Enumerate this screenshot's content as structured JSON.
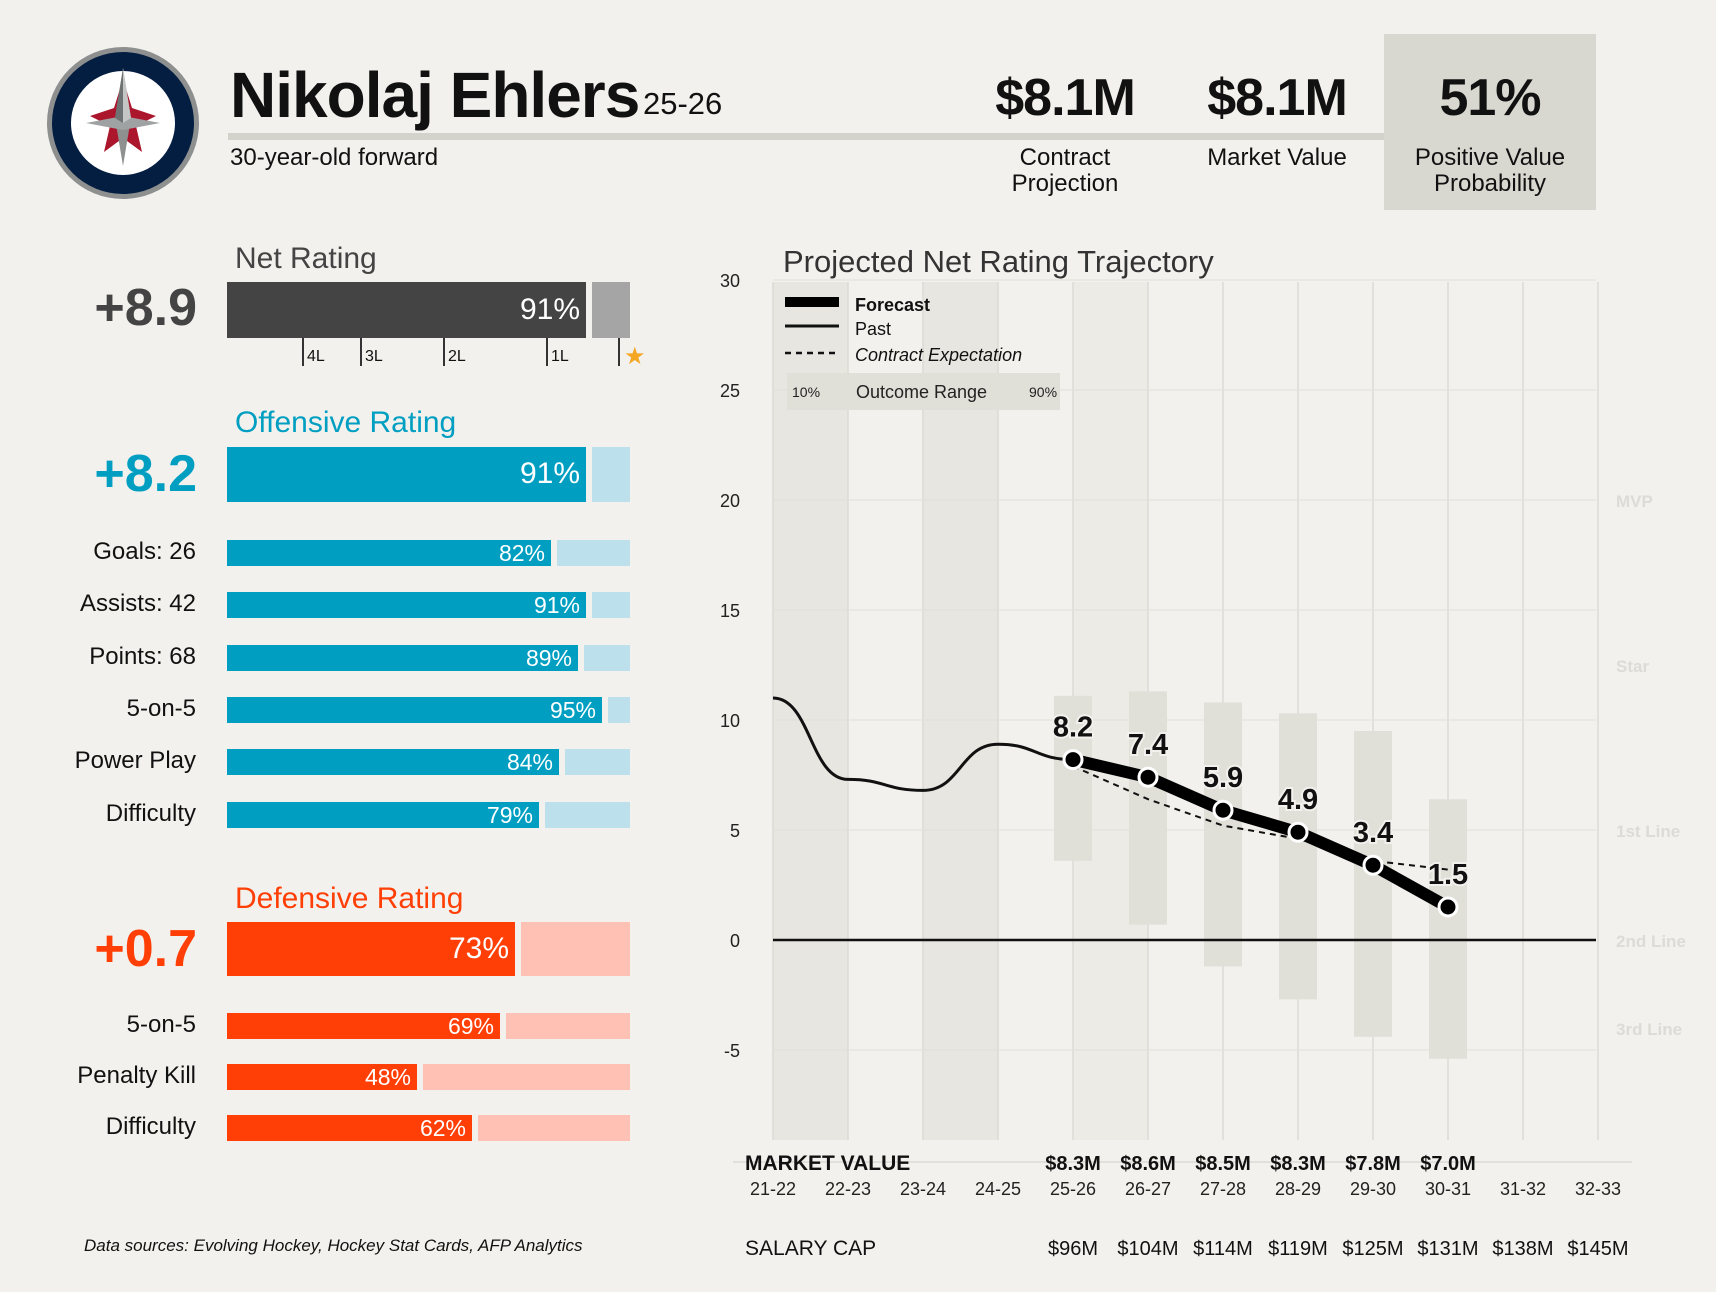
{
  "player": {
    "name": "Nikolaj Ehlers",
    "season": "25-26",
    "descriptor": "30-year-old forward",
    "team_colors": {
      "navy": "#041e42",
      "red": "#ac162c",
      "silver": "#8e9090"
    }
  },
  "header_stats": [
    {
      "value": "$8.1M",
      "label": "Contract Projection"
    },
    {
      "value": "$8.1M",
      "label": "Market Value"
    },
    {
      "value": "51%",
      "label": "Positive Value Probability"
    }
  ],
  "net": {
    "title": "Net Rating",
    "value": "+8.9",
    "pct_label": "91%",
    "pct": 0.91,
    "color": "#444444",
    "track": "#a5a5a5",
    "tiers": [
      "4L",
      "3L",
      "2L",
      "1L"
    ],
    "star": "★",
    "star_color": "#f5a623"
  },
  "offense": {
    "title": "Offensive Rating",
    "value": "+8.2",
    "pct_label": "91%",
    "pct": 0.91,
    "color": "#009fc2",
    "track": "#bde1ec",
    "rows": [
      {
        "label": "Goals: 26",
        "pct_label": "82%",
        "pct": 0.82
      },
      {
        "label": "Assists: 42",
        "pct_label": "91%",
        "pct": 0.91
      },
      {
        "label": "Points: 68",
        "pct_label": "89%",
        "pct": 0.89
      },
      {
        "label": "5-on-5",
        "pct_label": "95%",
        "pct": 0.95
      },
      {
        "label": "Power Play",
        "pct_label": "84%",
        "pct": 0.84
      },
      {
        "label": "Difficulty",
        "pct_label": "79%",
        "pct": 0.79
      }
    ]
  },
  "defense": {
    "title": "Defensive Rating",
    "value": "+0.7",
    "pct_label": "73%",
    "pct": 0.73,
    "color": "#ff3f06",
    "track": "#ffc1b4",
    "rows": [
      {
        "label": "5-on-5",
        "pct_label": "69%",
        "pct": 0.69
      },
      {
        "label": "Penalty Kill",
        "pct_label": "48%",
        "pct": 0.48
      },
      {
        "label": "Difficulty",
        "pct_label": "62%",
        "pct": 0.62
      }
    ]
  },
  "chart_data": {
    "type": "line",
    "title": "Projected Net Rating Trajectory",
    "x": [
      "21-22",
      "22-23",
      "23-24",
      "24-25",
      "25-26",
      "26-27",
      "27-28",
      "28-29",
      "29-30",
      "30-31",
      "31-32",
      "32-33"
    ],
    "ylim": [
      -9,
      30
    ],
    "yticks": [
      30,
      25,
      20,
      15,
      10,
      5,
      0,
      -5
    ],
    "tier_labels": [
      {
        "label": "MVP",
        "y": 20
      },
      {
        "label": "Star",
        "y": 12.5
      },
      {
        "label": "1st Line",
        "y": 5
      },
      {
        "label": "2nd Line",
        "y": 0
      },
      {
        "label": "3rd Line",
        "y": -4
      }
    ],
    "series": [
      {
        "name": "Past",
        "x": [
          "21-22",
          "22-23",
          "23-24",
          "24-25",
          "25-26"
        ],
        "values": [
          11,
          7.3,
          6.8,
          8.9,
          8.2
        ]
      },
      {
        "name": "Forecast",
        "x": [
          "25-26",
          "26-27",
          "27-28",
          "28-29",
          "29-30",
          "30-31"
        ],
        "values": [
          8.2,
          7.4,
          5.9,
          4.9,
          3.4,
          1.5
        ],
        "point_labels": [
          "8.2",
          "7.4",
          "5.9",
          "4.9",
          "3.4",
          "1.5"
        ]
      },
      {
        "name": "Contract Expectation",
        "x": [
          "25-26",
          "26-27",
          "27-28",
          "28-29",
          "29-30",
          "30-31"
        ],
        "values": [
          7.9,
          6.4,
          5.2,
          4.6,
          3.6,
          3.2
        ]
      }
    ],
    "range": {
      "x": [
        "25-26",
        "26-27",
        "27-28",
        "28-29",
        "29-30",
        "30-31"
      ],
      "low": [
        3.6,
        0.7,
        -1.2,
        -2.7,
        -4.4,
        -5.4
      ],
      "high": [
        11.1,
        11.3,
        10.8,
        10.3,
        9.5,
        6.4
      ]
    },
    "legend": {
      "items": [
        "Forecast",
        "Past",
        "Contract Expectation"
      ],
      "range_label": "Outcome Range",
      "range_low": "10%",
      "range_high": "90%",
      "placement": "top-left"
    },
    "grid": true,
    "market_value": {
      "label": "MARKET VALUE",
      "x": [
        "25-26",
        "26-27",
        "27-28",
        "28-29",
        "29-30",
        "30-31"
      ],
      "values": [
        "$8.3M",
        "$8.6M",
        "$8.5M",
        "$8.3M",
        "$7.8M",
        "$7.0M"
      ]
    },
    "salary_cap": {
      "label": "SALARY CAP",
      "x": [
        "25-26",
        "26-27",
        "27-28",
        "28-29",
        "29-30",
        "30-31",
        "31-32",
        "32-33"
      ],
      "values": [
        "$96M",
        "$104M",
        "$114M",
        "$119M",
        "$125M",
        "$131M",
        "$138M",
        "$145M"
      ]
    }
  },
  "footer": {
    "sources": "Data sources: Evolving Hockey, Hockey Stat Cards, AFP Analytics"
  }
}
